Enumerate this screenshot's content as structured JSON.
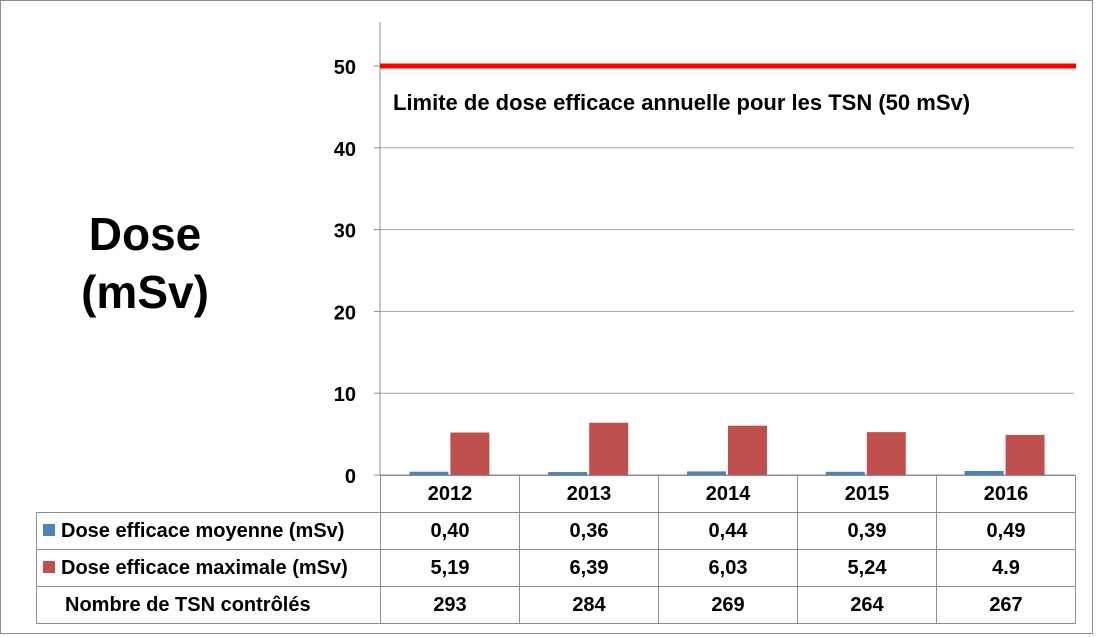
{
  "colors": {
    "series_mean": "#4f81bd",
    "series_max": "#c0504d",
    "limit_line": "#ff0000",
    "gridline": "#a6a6a6"
  },
  "chart_data": {
    "type": "bar",
    "ylabel_line1": "Dose",
    "ylabel_line2": "(mSv)",
    "ylim": [
      0,
      54
    ],
    "yticks": [
      0,
      10,
      20,
      30,
      40,
      50
    ],
    "grid": true,
    "categories": [
      "2012",
      "2013",
      "2014",
      "2015",
      "2016"
    ],
    "series": [
      {
        "name": "Dose efficace moyenne (mSv)",
        "values": [
          0.4,
          0.36,
          0.44,
          0.39,
          0.49
        ],
        "labels": [
          "0,40",
          "0,36",
          "0,44",
          "0,39",
          "0,49"
        ],
        "color": "#4f81bd"
      },
      {
        "name": "Dose efficace maximale (mSv)",
        "values": [
          5.19,
          6.39,
          6.03,
          5.24,
          4.9
        ],
        "labels": [
          "5,19",
          "6,39",
          "6,03",
          "5,24",
          "4.9"
        ],
        "color": "#c0504d"
      }
    ],
    "extra_row": {
      "name": "Nombre de TSN contrôlés",
      "values": [
        "293",
        "284",
        "269",
        "264",
        "267"
      ]
    },
    "reference_line": {
      "value": 50,
      "label": "Limite de dose efficace annuelle pour les TSN (50 mSv)"
    },
    "legend": "table"
  }
}
